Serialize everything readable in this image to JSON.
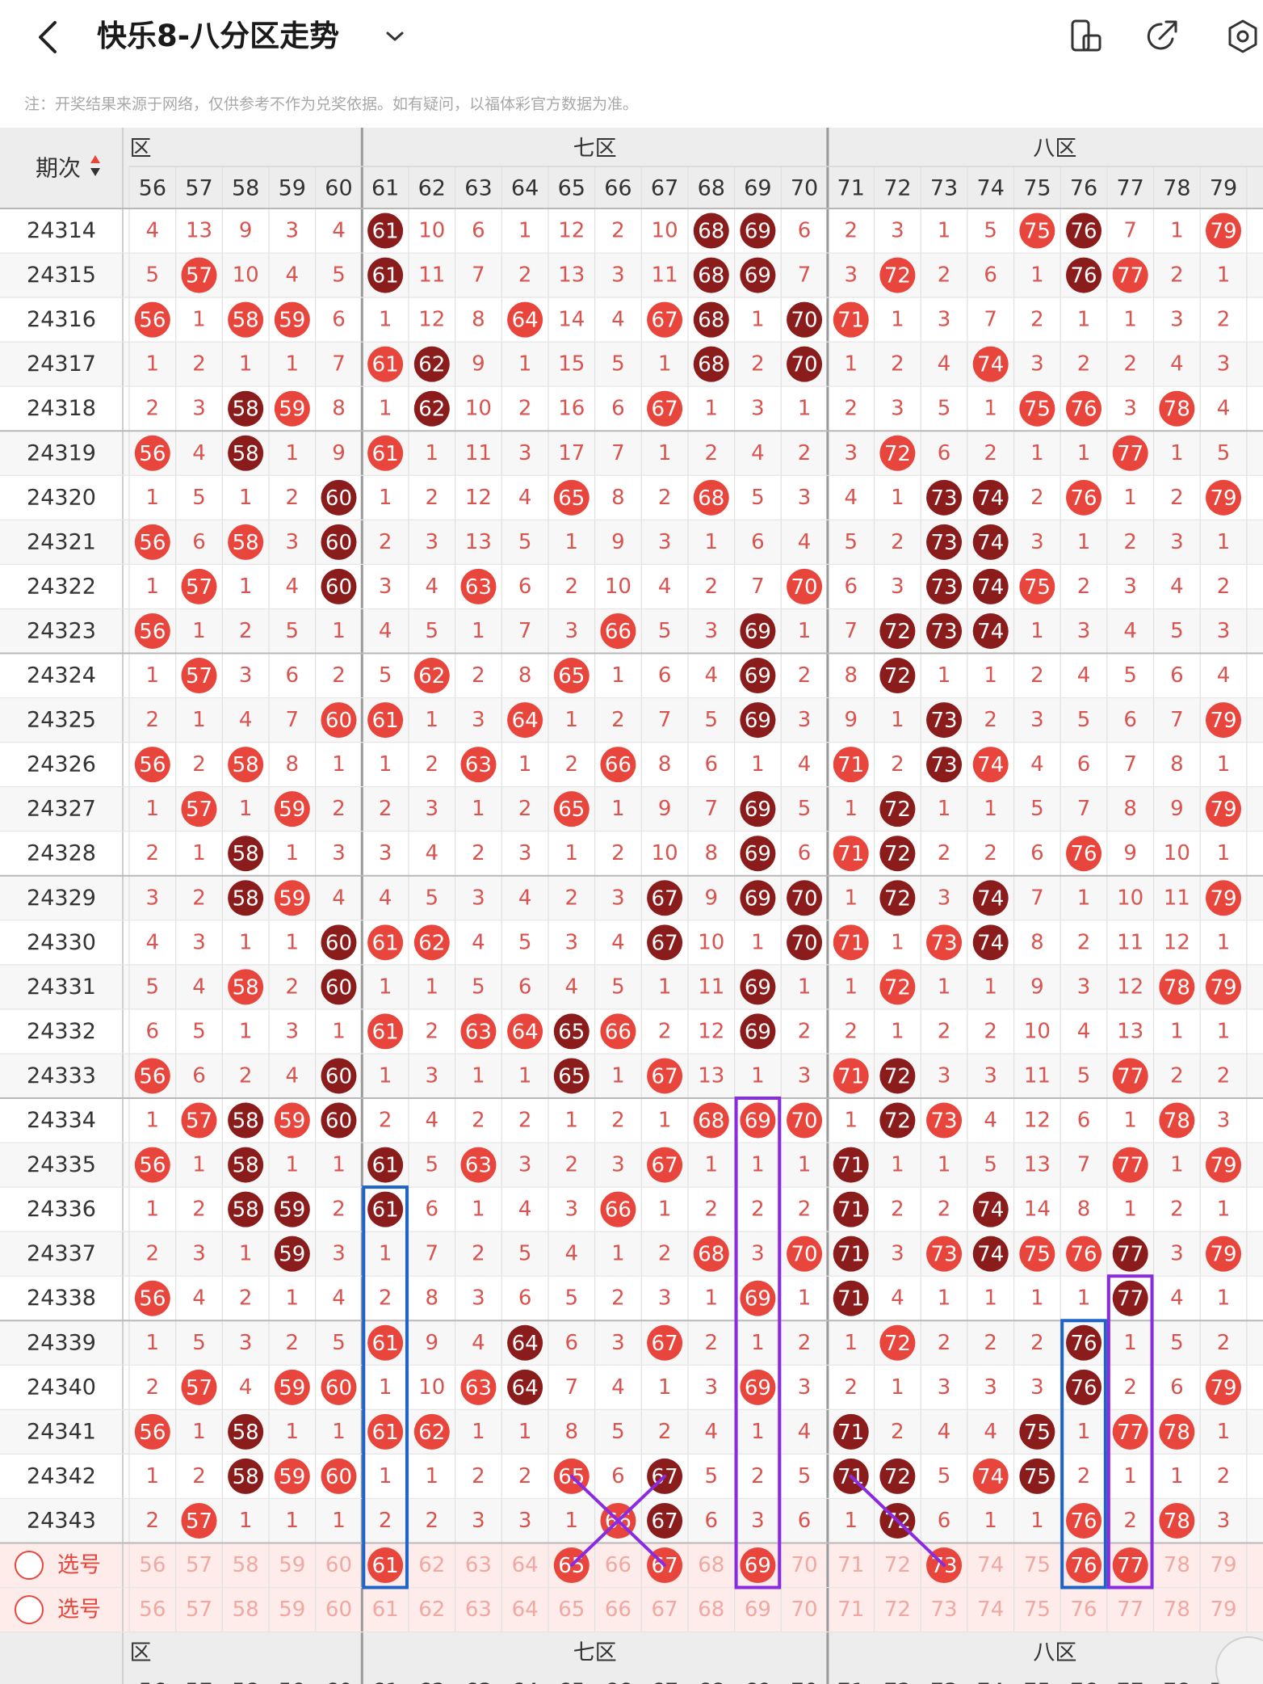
{
  "header": {
    "title": "快乐8-八分区走势",
    "back_icon": "chevron-left-icon",
    "dropdown_icon": "chevron-down-icon",
    "actions": [
      {
        "name": "orientation-button",
        "icon": "rotate-phone-icon"
      },
      {
        "name": "share-button",
        "icon": "share-arrow-icon"
      },
      {
        "name": "settings-button",
        "icon": "gear-icon"
      }
    ]
  },
  "notice": "注：开奖结果来源于网络，仅供参考不作为兑奖依据。如有疑问，以福体彩官方数据为准。",
  "table": {
    "corner_label": "期次",
    "zones": [
      {
        "label": "六区",
        "visible": "区"
      },
      {
        "label": "七区",
        "visible": "七区"
      },
      {
        "label": "八区",
        "visible": "八区"
      }
    ],
    "columns": [
      56,
      57,
      58,
      59,
      60,
      61,
      62,
      63,
      64,
      65,
      66,
      67,
      68,
      69,
      70,
      71,
      72,
      73,
      74,
      75,
      76,
      77,
      78,
      79
    ],
    "rows": [
      {
        "period": "24314",
        "cells": [
          "4",
          "13",
          "9",
          "3",
          "4",
          "61",
          "10",
          "6",
          "1",
          "12",
          "2",
          "10",
          "68",
          "69",
          "6",
          "2",
          "3",
          "1",
          "5",
          "75",
          "76",
          "7",
          "1",
          "79"
        ]
      },
      {
        "period": "24315",
        "cells": [
          "5",
          "57",
          "10",
          "4",
          "5",
          "61",
          "11",
          "7",
          "2",
          "13",
          "3",
          "11",
          "68",
          "69",
          "7",
          "3",
          "72",
          "2",
          "6",
          "1",
          "76",
          "77",
          "2",
          "1"
        ]
      },
      {
        "period": "24316",
        "cells": [
          "56",
          "1",
          "58",
          "59",
          "6",
          "1",
          "12",
          "8",
          "64",
          "14",
          "4",
          "67",
          "68",
          "1",
          "70",
          "71",
          "1",
          "3",
          "7",
          "2",
          "1",
          "1",
          "3",
          "2"
        ]
      },
      {
        "period": "24317",
        "cells": [
          "1",
          "2",
          "1",
          "1",
          "7",
          "61",
          "62",
          "9",
          "1",
          "15",
          "5",
          "1",
          "68",
          "2",
          "70",
          "1",
          "2",
          "4",
          "74",
          "3",
          "2",
          "2",
          "4",
          "3"
        ]
      },
      {
        "period": "24318",
        "cells": [
          "2",
          "3",
          "58",
          "59",
          "8",
          "1",
          "62",
          "10",
          "2",
          "16",
          "6",
          "67",
          "1",
          "3",
          "1",
          "2",
          "3",
          "5",
          "1",
          "75",
          "76",
          "3",
          "78",
          "4"
        ]
      },
      {
        "period": "24319",
        "cells": [
          "56",
          "4",
          "58",
          "1",
          "9",
          "61",
          "1",
          "11",
          "3",
          "17",
          "7",
          "1",
          "2",
          "4",
          "2",
          "3",
          "72",
          "6",
          "2",
          "1",
          "1",
          "77",
          "1",
          "5"
        ]
      },
      {
        "period": "24320",
        "cells": [
          "1",
          "5",
          "1",
          "2",
          "60",
          "1",
          "2",
          "12",
          "4",
          "65",
          "8",
          "2",
          "68",
          "5",
          "3",
          "4",
          "1",
          "73",
          "74",
          "2",
          "76",
          "1",
          "2",
          "79"
        ]
      },
      {
        "period": "24321",
        "cells": [
          "56",
          "6",
          "58",
          "3",
          "60",
          "2",
          "3",
          "13",
          "5",
          "1",
          "9",
          "3",
          "1",
          "6",
          "4",
          "5",
          "2",
          "73",
          "74",
          "3",
          "1",
          "2",
          "3",
          "1"
        ]
      },
      {
        "period": "24322",
        "cells": [
          "1",
          "57",
          "1",
          "4",
          "60",
          "3",
          "4",
          "63",
          "6",
          "2",
          "10",
          "4",
          "2",
          "7",
          "70",
          "6",
          "3",
          "73",
          "74",
          "75",
          "2",
          "3",
          "4",
          "2"
        ]
      },
      {
        "period": "24323",
        "cells": [
          "56",
          "1",
          "2",
          "5",
          "1",
          "4",
          "5",
          "1",
          "7",
          "3",
          "66",
          "5",
          "3",
          "69",
          "1",
          "7",
          "72",
          "73",
          "74",
          "1",
          "3",
          "4",
          "5",
          "3"
        ]
      },
      {
        "period": "24324",
        "cells": [
          "1",
          "57",
          "3",
          "6",
          "2",
          "5",
          "62",
          "2",
          "8",
          "65",
          "1",
          "6",
          "4",
          "69",
          "2",
          "8",
          "72",
          "1",
          "1",
          "2",
          "4",
          "5",
          "6",
          "4"
        ]
      },
      {
        "period": "24325",
        "cells": [
          "2",
          "1",
          "4",
          "7",
          "60",
          "61",
          "1",
          "3",
          "64",
          "1",
          "2",
          "7",
          "5",
          "69",
          "3",
          "9",
          "1",
          "73",
          "2",
          "3",
          "5",
          "6",
          "7",
          "79"
        ]
      },
      {
        "period": "24326",
        "cells": [
          "56",
          "2",
          "58",
          "8",
          "1",
          "1",
          "2",
          "63",
          "1",
          "2",
          "66",
          "8",
          "6",
          "1",
          "4",
          "71",
          "2",
          "73",
          "74",
          "4",
          "6",
          "7",
          "8",
          "1"
        ]
      },
      {
        "period": "24327",
        "cells": [
          "1",
          "57",
          "1",
          "59",
          "2",
          "2",
          "3",
          "1",
          "2",
          "65",
          "1",
          "9",
          "7",
          "69",
          "5",
          "1",
          "72",
          "1",
          "1",
          "5",
          "7",
          "8",
          "9",
          "79"
        ]
      },
      {
        "period": "24328",
        "cells": [
          "2",
          "1",
          "58",
          "1",
          "3",
          "3",
          "4",
          "2",
          "3",
          "1",
          "2",
          "10",
          "8",
          "69",
          "6",
          "71",
          "72",
          "2",
          "2",
          "6",
          "76",
          "9",
          "10",
          "1"
        ]
      },
      {
        "period": "24329",
        "cells": [
          "3",
          "2",
          "58",
          "59",
          "4",
          "4",
          "5",
          "3",
          "4",
          "2",
          "3",
          "67",
          "9",
          "69",
          "70",
          "1",
          "72",
          "3",
          "74",
          "7",
          "1",
          "10",
          "11",
          "79"
        ]
      },
      {
        "period": "24330",
        "cells": [
          "4",
          "3",
          "1",
          "1",
          "60",
          "61",
          "62",
          "4",
          "5",
          "3",
          "4",
          "67",
          "10",
          "1",
          "70",
          "71",
          "1",
          "73",
          "74",
          "8",
          "2",
          "11",
          "12",
          "1"
        ]
      },
      {
        "period": "24331",
        "cells": [
          "5",
          "4",
          "58",
          "2",
          "60",
          "1",
          "1",
          "5",
          "6",
          "4",
          "5",
          "1",
          "11",
          "69",
          "1",
          "1",
          "72",
          "1",
          "1",
          "9",
          "3",
          "12",
          "78",
          "79"
        ]
      },
      {
        "period": "24332",
        "cells": [
          "6",
          "5",
          "1",
          "3",
          "1",
          "61",
          "2",
          "63",
          "64",
          "65",
          "66",
          "2",
          "12",
          "69",
          "2",
          "2",
          "1",
          "2",
          "2",
          "10",
          "4",
          "13",
          "1",
          "1"
        ]
      },
      {
        "period": "24333",
        "cells": [
          "56",
          "6",
          "2",
          "4",
          "60",
          "1",
          "3",
          "1",
          "1",
          "65",
          "1",
          "67",
          "13",
          "1",
          "3",
          "71",
          "72",
          "3",
          "3",
          "11",
          "5",
          "77",
          "2",
          "2"
        ]
      },
      {
        "period": "24334",
        "cells": [
          "1",
          "57",
          "58",
          "59",
          "60",
          "2",
          "4",
          "2",
          "2",
          "1",
          "2",
          "1",
          "68",
          "69",
          "70",
          "1",
          "72",
          "73",
          "4",
          "12",
          "6",
          "1",
          "78",
          "3"
        ]
      },
      {
        "period": "24335",
        "cells": [
          "56",
          "1",
          "58",
          "1",
          "1",
          "61",
          "5",
          "63",
          "3",
          "2",
          "3",
          "67",
          "1",
          "1",
          "1",
          "71",
          "1",
          "1",
          "5",
          "13",
          "7",
          "77",
          "1",
          "79"
        ]
      },
      {
        "period": "24336",
        "cells": [
          "1",
          "2",
          "58",
          "59",
          "2",
          "61",
          "6",
          "1",
          "4",
          "3",
          "66",
          "1",
          "2",
          "2",
          "2",
          "71",
          "2",
          "2",
          "74",
          "14",
          "8",
          "1",
          "2",
          "1"
        ]
      },
      {
        "period": "24337",
        "cells": [
          "2",
          "3",
          "1",
          "59",
          "3",
          "1",
          "7",
          "2",
          "5",
          "4",
          "1",
          "2",
          "68",
          "3",
          "70",
          "71",
          "3",
          "73",
          "74",
          "75",
          "76",
          "77",
          "3",
          "79"
        ]
      },
      {
        "period": "24338",
        "cells": [
          "56",
          "4",
          "2",
          "1",
          "4",
          "2",
          "8",
          "3",
          "6",
          "5",
          "2",
          "3",
          "1",
          "69",
          "1",
          "71",
          "4",
          "1",
          "1",
          "1",
          "1",
          "77",
          "4",
          "1"
        ]
      },
      {
        "period": "24339",
        "cells": [
          "1",
          "5",
          "3",
          "2",
          "5",
          "61",
          "9",
          "4",
          "64",
          "6",
          "3",
          "67",
          "2",
          "1",
          "2",
          "1",
          "72",
          "2",
          "2",
          "2",
          "76",
          "1",
          "5",
          "2"
        ]
      },
      {
        "period": "24340",
        "cells": [
          "2",
          "57",
          "4",
          "59",
          "60",
          "1",
          "10",
          "63",
          "64",
          "7",
          "4",
          "1",
          "3",
          "69",
          "3",
          "2",
          "1",
          "3",
          "3",
          "3",
          "76",
          "2",
          "6",
          "79"
        ]
      },
      {
        "period": "24341",
        "cells": [
          "56",
          "1",
          "58",
          "1",
          "1",
          "61",
          "62",
          "1",
          "1",
          "8",
          "5",
          "2",
          "4",
          "1",
          "4",
          "71",
          "2",
          "4",
          "4",
          "75",
          "1",
          "77",
          "78",
          "1"
        ]
      },
      {
        "period": "24342",
        "cells": [
          "1",
          "2",
          "58",
          "59",
          "60",
          "1",
          "1",
          "2",
          "2",
          "65",
          "6",
          "67",
          "5",
          "2",
          "5",
          "71",
          "72",
          "5",
          "74",
          "75",
          "2",
          "1",
          "1",
          "2"
        ]
      },
      {
        "period": "24343",
        "cells": [
          "2",
          "57",
          "1",
          "1",
          "1",
          "2",
          "2",
          "3",
          "3",
          "1",
          "66",
          "67",
          "6",
          "3",
          "6",
          "1",
          "72",
          "6",
          "1",
          "1",
          "76",
          "2",
          "78",
          "3"
        ]
      }
    ],
    "select_rows": [
      {
        "label": "选号",
        "picked": [
          61,
          65,
          67,
          69,
          73,
          76,
          77
        ]
      },
      {
        "label": "选号",
        "picked": []
      }
    ],
    "colors": {
      "red_ball": "#e8453c",
      "dark_ball": "#8b1c1c",
      "miss_text": "#d9534f",
      "period_text": "#333333",
      "header_bg": "#ededed",
      "row_alt": "#f7f7f7",
      "select_bg": "#fdecea",
      "blue_box": "#1e64c8",
      "purple_box": "#8a2be2"
    }
  }
}
